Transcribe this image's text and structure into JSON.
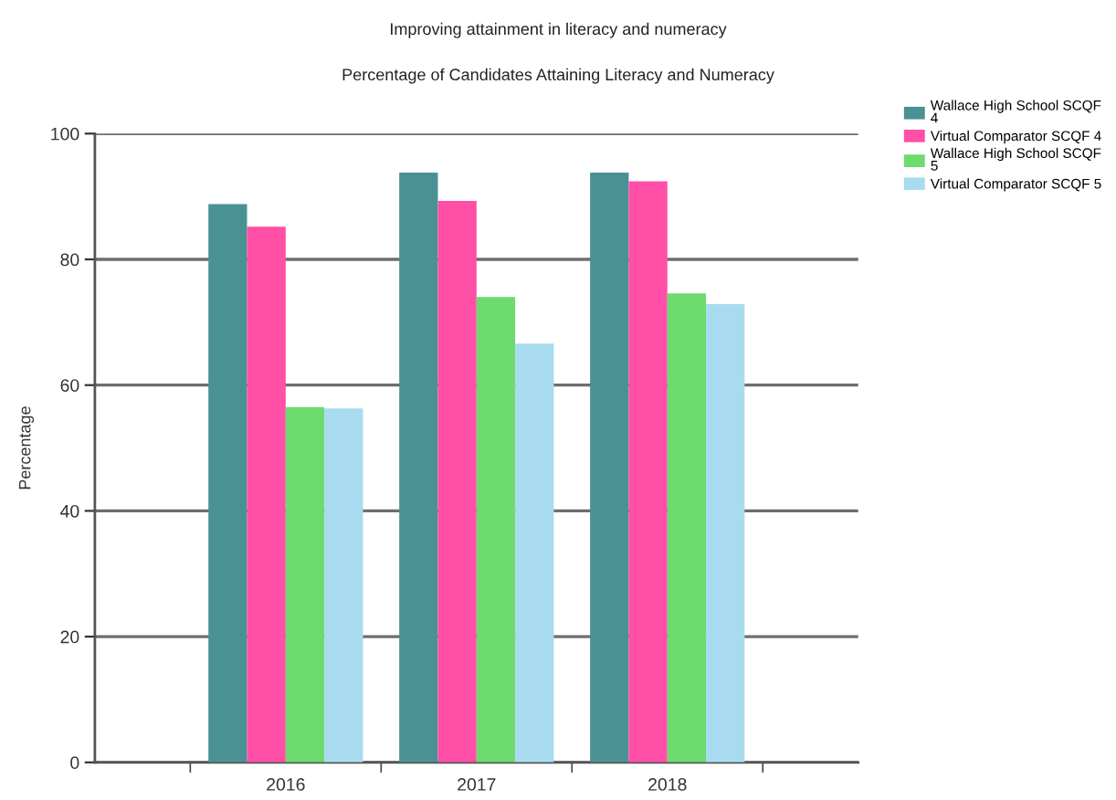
{
  "chart_data": {
    "type": "bar",
    "title": "Improving attainment in literacy and numeracy",
    "subtitle": "Percentage of Candidates Attaining Literacy and Numeracy",
    "ylabel": "Percentage",
    "categories": [
      "2016",
      "2017",
      "2018"
    ],
    "series": [
      {
        "name": "Wallace High School SCQF 4",
        "color": "#4a9194",
        "values": [
          88.8,
          93.8,
          93.8
        ]
      },
      {
        "name": "Virtual Comparator SCQF 4",
        "color": "#ff4fa6",
        "values": [
          85.2,
          89.3,
          92.4
        ]
      },
      {
        "name": "Wallace High School SCQF 5",
        "color": "#6ddb6d",
        "values": [
          56.5,
          74.0,
          74.6
        ]
      },
      {
        "name": "Virtual Comparator SCQF 5",
        "color": "#a8dbef",
        "values": [
          56.3,
          66.6,
          72.9
        ]
      }
    ],
    "ylim": [
      0,
      100
    ],
    "yticks": [
      0,
      20,
      40,
      60,
      80,
      100
    ],
    "grid": "y",
    "legend": "top right"
  }
}
